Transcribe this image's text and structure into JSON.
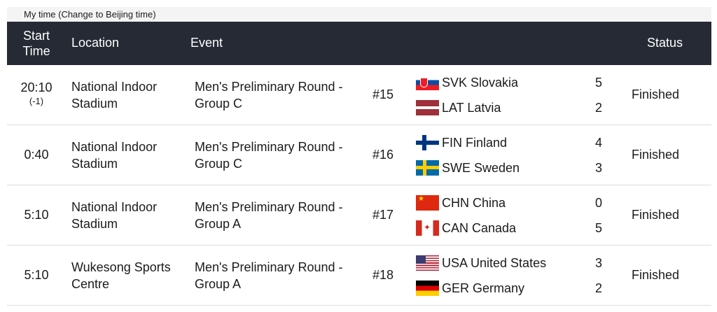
{
  "top_bar": {
    "text": "My time (Change to Beijing time)"
  },
  "header": {
    "start_time": "Start Time",
    "location": "Location",
    "event": "Event",
    "status": "Status"
  },
  "rows": [
    {
      "time": "20:10",
      "offset": "(-1)",
      "location": "National Indoor Stadium",
      "event": "Men's Preliminary Round - Group C",
      "number": "#15",
      "team1": {
        "flag": "svk-flag-icon",
        "name": "SVK Slovakia",
        "score": "5"
      },
      "team2": {
        "flag": "lat-flag-icon",
        "name": "LAT Latvia",
        "score": "2"
      },
      "status": "Finished"
    },
    {
      "time": "0:40",
      "offset": "",
      "location": "National Indoor Stadium",
      "event": "Men's Preliminary Round - Group C",
      "number": "#16",
      "team1": {
        "flag": "fin-flag-icon",
        "name": "FIN Finland",
        "score": "4"
      },
      "team2": {
        "flag": "swe-flag-icon",
        "name": "SWE Sweden",
        "score": "3"
      },
      "status": "Finished"
    },
    {
      "time": "5:10",
      "offset": "",
      "location": "National Indoor Stadium",
      "event": "Men's Preliminary Round - Group A",
      "number": "#17",
      "team1": {
        "flag": "chn-flag-icon",
        "name": "CHN China",
        "score": "0"
      },
      "team2": {
        "flag": "can-flag-icon",
        "name": "CAN Canada",
        "score": "5"
      },
      "status": "Finished"
    },
    {
      "time": "5:10",
      "offset": "",
      "location": "Wukesong Sports Centre",
      "event": "Men's Preliminary Round - Group A",
      "number": "#18",
      "team1": {
        "flag": "usa-flag-icon",
        "name": "USA United States",
        "score": "3"
      },
      "team2": {
        "flag": "ger-flag-icon",
        "name": "GER Germany",
        "score": "2"
      },
      "status": "Finished"
    }
  ],
  "colors": {
    "header_bg": "#252a34",
    "topbar_bg": "#f4f4f4",
    "row_border": "#dcdcdc"
  }
}
